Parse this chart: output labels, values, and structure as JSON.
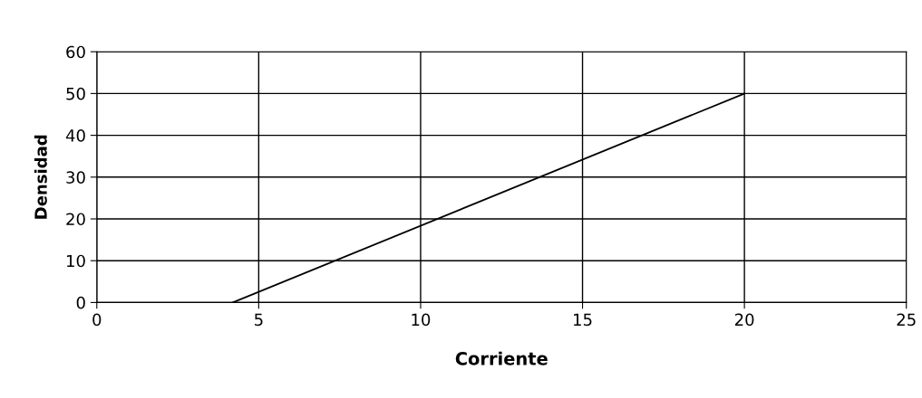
{
  "chart_data": {
    "type": "line",
    "xlabel": "Corriente",
    "ylabel": "Densidad",
    "series": [
      {
        "color": "#000000",
        "x": [
          4.2,
          20
        ],
        "values": [
          0,
          50
        ]
      }
    ],
    "xlim": [
      0,
      25
    ],
    "xticks": [
      0,
      5,
      10,
      15,
      20,
      25
    ],
    "ylim": [
      0,
      60
    ],
    "yticks": [
      0,
      10,
      20,
      30,
      40,
      50,
      60
    ],
    "grid": true,
    "marker": "none",
    "line_style": "solid"
  }
}
